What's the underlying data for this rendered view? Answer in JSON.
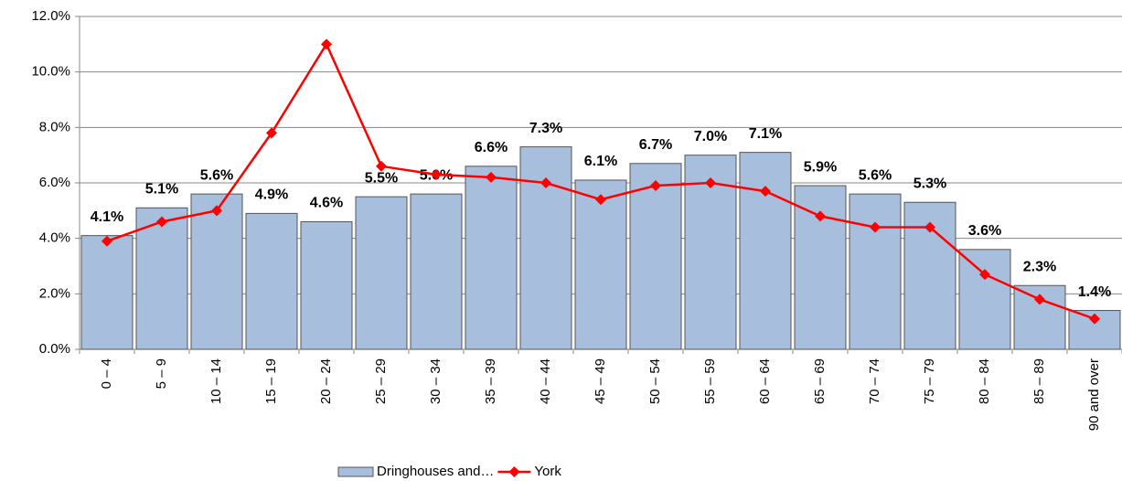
{
  "chart_data": {
    "type": "bar",
    "categories": [
      "0 – 4",
      "5 – 9",
      "10 – 14",
      "15 – 19",
      "20 – 24",
      "25 – 29",
      "30 – 34",
      "35 – 39",
      "40 – 44",
      "45 – 49",
      "50 – 54",
      "55 – 59",
      "60 – 64",
      "65 – 69",
      "70 – 74",
      "75 – 79",
      "80 – 84",
      "85 – 89",
      "90 and over"
    ],
    "series": [
      {
        "name": "Dringhouses and…",
        "type": "bar",
        "color": "#a7bfdd",
        "values": [
          4.1,
          5.1,
          5.6,
          4.9,
          4.6,
          5.5,
          5.6,
          6.6,
          7.3,
          6.1,
          6.7,
          7.0,
          7.1,
          5.9,
          5.6,
          5.3,
          3.6,
          2.3,
          1.4
        ],
        "value_labels": [
          "4.1%",
          "5.1%",
          "5.6%",
          "4.9%",
          "4.6%",
          "5.5%",
          "5.6%",
          "6.6%",
          "7.3%",
          "6.1%",
          "6.7%",
          "7.0%",
          "7.1%",
          "5.9%",
          "5.6%",
          "5.3%",
          "3.6%",
          "2.3%",
          "1.4%"
        ]
      },
      {
        "name": "York",
        "type": "line",
        "color": "#ff0000",
        "values": [
          3.9,
          4.6,
          5.0,
          7.8,
          11.0,
          6.6,
          6.3,
          6.2,
          6.0,
          5.4,
          5.9,
          6.0,
          5.7,
          4.8,
          4.4,
          4.4,
          2.7,
          1.8,
          1.1
        ]
      }
    ],
    "ylim": [
      0,
      12
    ],
    "yticks": [
      {
        "value": 0,
        "label": "0.0%"
      },
      {
        "value": 2,
        "label": "2.0%"
      },
      {
        "value": 4,
        "label": "4.0%"
      },
      {
        "value": 6,
        "label": "6.0%"
      },
      {
        "value": 8,
        "label": "8.0%"
      },
      {
        "value": 10,
        "label": "10.0%"
      },
      {
        "value": 12,
        "label": "12.0%"
      }
    ],
    "grid": true,
    "legend": "bottom"
  }
}
